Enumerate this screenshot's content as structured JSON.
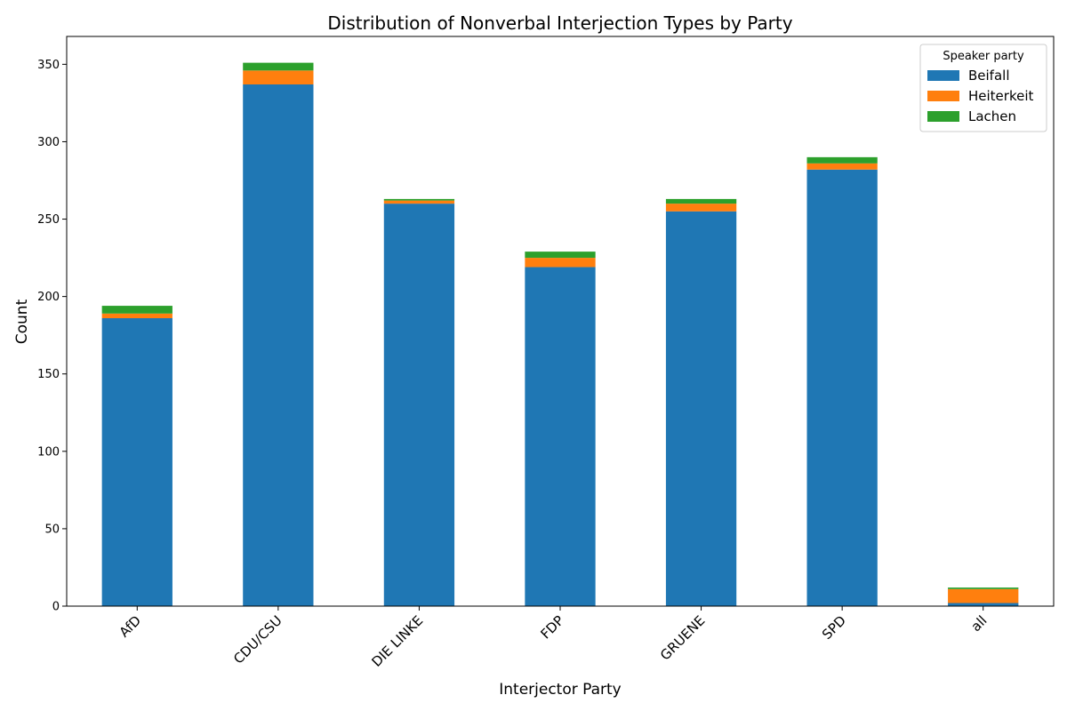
{
  "chart_data": {
    "type": "bar",
    "stacked": true,
    "title": "Distribution of Nonverbal Interjection Types by Party",
    "xlabel": "Interjector Party",
    "ylabel": "Count",
    "categories": [
      "AfD",
      "CDU/CSU",
      "DIE LINKE",
      "FDP",
      "GRUENE",
      "SPD",
      "all"
    ],
    "series": [
      {
        "name": "Beifall",
        "color": "#1f77b4",
        "values": [
          186,
          337,
          260,
          219,
          255,
          282,
          2
        ]
      },
      {
        "name": "Heiterkeit",
        "color": "#ff7f0e",
        "values": [
          3,
          9,
          2,
          6,
          5,
          4,
          9
        ]
      },
      {
        "name": "Lachen",
        "color": "#2ca02c",
        "values": [
          5,
          5,
          1,
          4,
          3,
          4,
          1
        ]
      }
    ],
    "ylim": [
      0,
      368
    ],
    "yticks": [
      0,
      50,
      100,
      150,
      200,
      250,
      300,
      350
    ],
    "legend": {
      "title": "Speaker party",
      "position": "top-right"
    },
    "grid": false
  }
}
